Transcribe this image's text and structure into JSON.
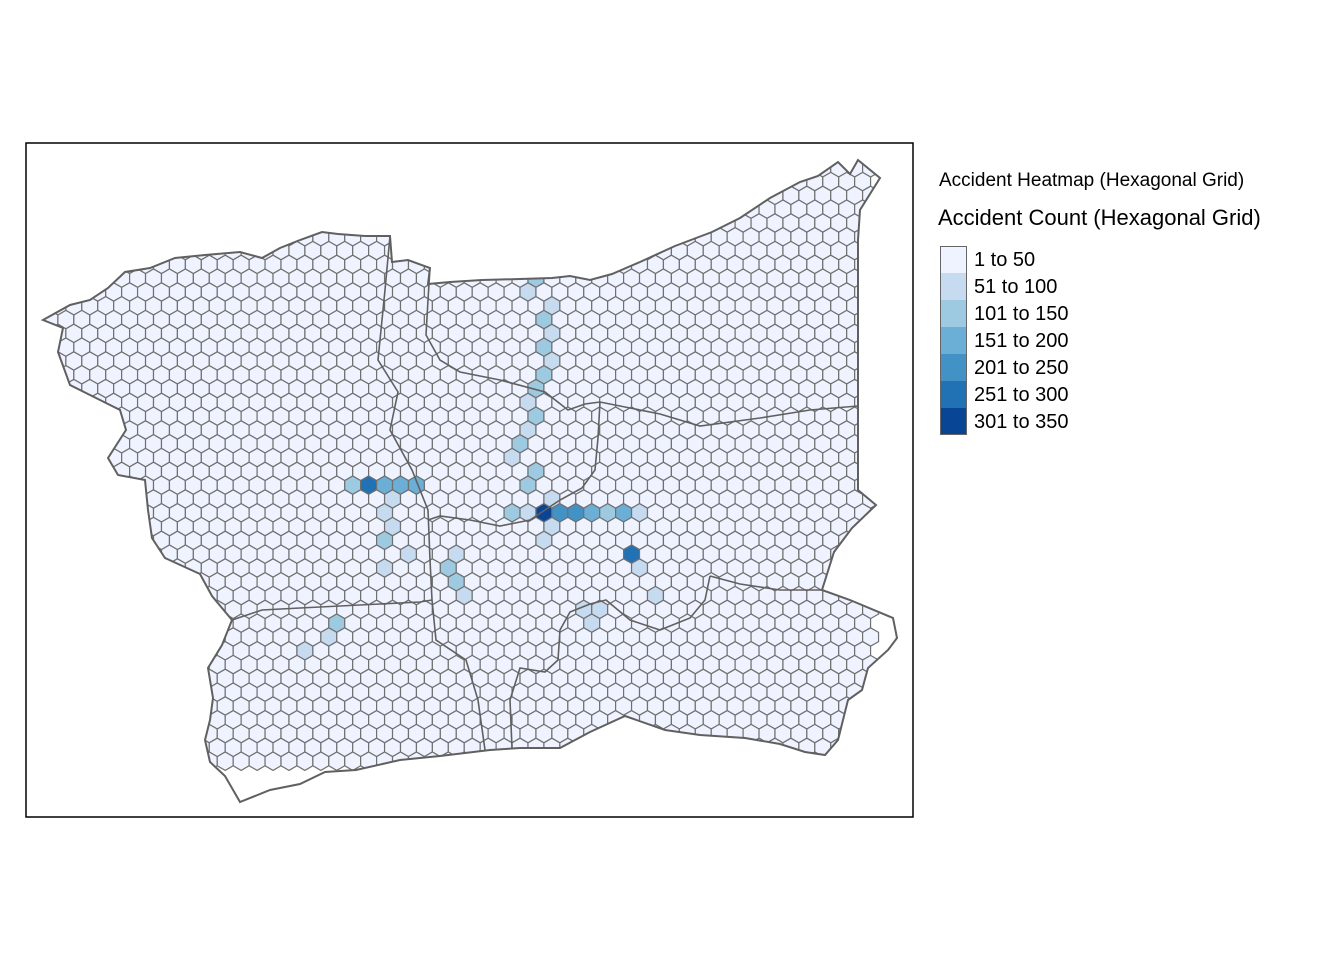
{
  "legend": {
    "caption": "Accident Heatmap (Hexagonal Grid)",
    "title": "Accident Count (Hexagonal Grid)",
    "classes": [
      {
        "label": "1 to 50",
        "color": "#eff3ff"
      },
      {
        "label": "51 to 100",
        "color": "#c6dbef"
      },
      {
        "label": "101 to 150",
        "color": "#9ecae1"
      },
      {
        "label": "151 to 200",
        "color": "#6baed6"
      },
      {
        "label": "201 to 250",
        "color": "#4292c6"
      },
      {
        "label": "251 to 300",
        "color": "#2171b5"
      },
      {
        "label": "301 to 350",
        "color": "#084594"
      }
    ]
  },
  "map": {
    "hex_stroke": "#707070",
    "border_stroke": "#606060",
    "frame_stroke": "#000000",
    "default_class": 0,
    "highlighted_cells": [
      {
        "c": 31,
        "r": 9,
        "cls": 2
      },
      {
        "c": 31,
        "r": 10,
        "cls": 1
      },
      {
        "c": 32,
        "r": 11,
        "cls": 1
      },
      {
        "c": 32,
        "r": 12,
        "cls": 2
      },
      {
        "c": 32,
        "r": 13,
        "cls": 1
      },
      {
        "c": 32,
        "r": 14,
        "cls": 2
      },
      {
        "c": 32,
        "r": 15,
        "cls": 1
      },
      {
        "c": 32,
        "r": 16,
        "cls": 2
      },
      {
        "c": 31,
        "r": 17,
        "cls": 2
      },
      {
        "c": 31,
        "r": 18,
        "cls": 1
      },
      {
        "c": 31,
        "r": 19,
        "cls": 2
      },
      {
        "c": 31,
        "r": 20,
        "cls": 1
      },
      {
        "c": 30,
        "r": 21,
        "cls": 2
      },
      {
        "c": 30,
        "r": 22,
        "cls": 1
      },
      {
        "c": 31,
        "r": 23,
        "cls": 2
      },
      {
        "c": 31,
        "r": 24,
        "cls": 2
      },
      {
        "c": 32,
        "r": 25,
        "cls": 1
      },
      {
        "c": 32,
        "r": 26,
        "cls": 6
      },
      {
        "c": 33,
        "r": 26,
        "cls": 4
      },
      {
        "c": 34,
        "r": 26,
        "cls": 4
      },
      {
        "c": 35,
        "r": 26,
        "cls": 3
      },
      {
        "c": 36,
        "r": 26,
        "cls": 2
      },
      {
        "c": 37,
        "r": 26,
        "cls": 3
      },
      {
        "c": 38,
        "r": 26,
        "cls": 1
      },
      {
        "c": 30,
        "r": 26,
        "cls": 2
      },
      {
        "c": 31,
        "r": 26,
        "cls": 1
      },
      {
        "c": 32,
        "r": 27,
        "cls": 1
      },
      {
        "c": 32,
        "r": 28,
        "cls": 1
      },
      {
        "c": 20,
        "r": 24,
        "cls": 2
      },
      {
        "c": 21,
        "r": 24,
        "cls": 5
      },
      {
        "c": 22,
        "r": 24,
        "cls": 3
      },
      {
        "c": 23,
        "r": 24,
        "cls": 3
      },
      {
        "c": 24,
        "r": 24,
        "cls": 3
      },
      {
        "c": 22,
        "r": 25,
        "cls": 1
      },
      {
        "c": 22,
        "r": 26,
        "cls": 1
      },
      {
        "c": 22,
        "r": 27,
        "cls": 1
      },
      {
        "c": 22,
        "r": 28,
        "cls": 2
      },
      {
        "c": 23,
        "r": 29,
        "cls": 1
      },
      {
        "c": 22,
        "r": 30,
        "cls": 1
      },
      {
        "c": 26,
        "r": 29,
        "cls": 1
      },
      {
        "c": 26,
        "r": 30,
        "cls": 2
      },
      {
        "c": 26,
        "r": 31,
        "cls": 2
      },
      {
        "c": 27,
        "r": 32,
        "cls": 1
      },
      {
        "c": 37,
        "r": 29,
        "cls": 5
      },
      {
        "c": 38,
        "r": 30,
        "cls": 1
      },
      {
        "c": 39,
        "r": 32,
        "cls": 1
      },
      {
        "c": 34,
        "r": 33,
        "cls": 1
      },
      {
        "c": 35,
        "r": 33,
        "cls": 1
      },
      {
        "c": 35,
        "r": 34,
        "cls": 1
      },
      {
        "c": 19,
        "r": 34,
        "cls": 2
      },
      {
        "c": 18,
        "r": 35,
        "cls": 1
      },
      {
        "c": 17,
        "r": 36,
        "cls": 1
      }
    ]
  }
}
